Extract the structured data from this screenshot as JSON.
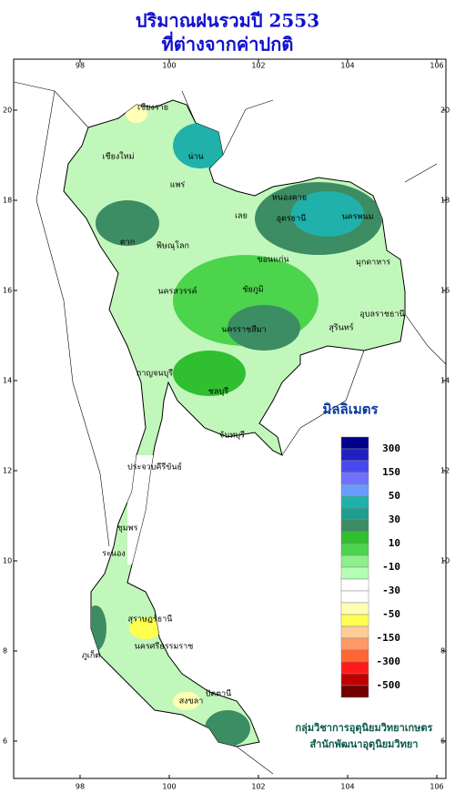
{
  "title": [
    "ปริมาณฝนรวมปี 2553",
    "ที่ต่างจากค่าปกติ"
  ],
  "map": {
    "lon_ticks": [
      98,
      100,
      102,
      104,
      106
    ],
    "lat_ticks": [
      6,
      8,
      10,
      12,
      14,
      16,
      18,
      20
    ],
    "places": [
      "เชียงราย",
      "เชียงใหม่",
      "น่าน",
      "แพร่",
      "ตาก",
      "พิษณุโลก",
      "เลย",
      "หนองคาย",
      "อุดรธานี",
      "นครพนม",
      "ขอนแก่น",
      "มุกดาหาร",
      "นครสวรรค์",
      "ชัยภูมิ",
      "นครราชสีมา",
      "อุบลราชธานี",
      "สุรินทร์",
      "กาญจนบุรี",
      "ชลบุรี",
      "จันทบุรี",
      "ประจวบคีรีขันธ์",
      "ชุมพร",
      "ระนอง",
      "สุราษฎร์ธานี",
      "นครศรีธรรมราช",
      "ภูเก็ต",
      "สงขลา",
      "ปัตตานี"
    ]
  },
  "legend": {
    "title": "มิลลิเมตร",
    "colors": [
      "#00008b",
      "#2020c0",
      "#4848f0",
      "#7070ff",
      "#6a9cff",
      "#20b2aa",
      "#1e9e8e",
      "#3c8c64",
      "#2fbf2f",
      "#4cd44c",
      "#8cf08c",
      "#b4ffb4",
      "#ffffff",
      "#ffffff",
      "#ffffb4",
      "#ffff50",
      "#ffcc99",
      "#ff9966",
      "#ff6633",
      "#ff1a1a",
      "#c00000",
      "#700000"
    ],
    "labels": [
      300,
      150,
      50,
      30,
      10,
      -10,
      -30,
      -50,
      -150,
      -300,
      -500
    ]
  },
  "credit": [
    "กลุ่มวิชาการอุตุนิยมวิทยาเกษตร",
    "สำนักพัฒนาอุตุนิยมวิทยา"
  ]
}
